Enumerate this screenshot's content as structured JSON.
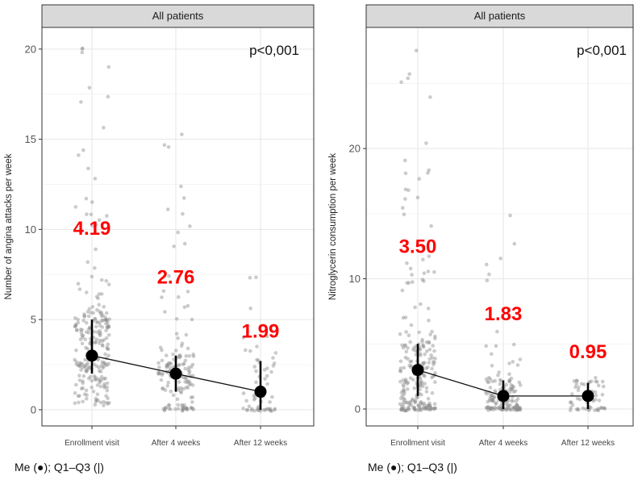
{
  "chart_data": [
    {
      "type": "scatter",
      "panel_title": "All patients",
      "ylabel": "Number of angina attacks per week",
      "categories": [
        "Enrollment visit",
        "After 4 weeks",
        "After 12 weeks"
      ],
      "yticks": [
        0,
        5,
        10,
        15,
        20
      ],
      "ylim": [
        -0.9,
        21.2
      ],
      "p_value": "p<0,001",
      "median": [
        3.0,
        2.0,
        1.0
      ],
      "q1": [
        2.0,
        1.0,
        0.0
      ],
      "q3": [
        5.0,
        3.0,
        2.7
      ],
      "mean_labels": [
        "4.19",
        "2.76",
        "1.99"
      ],
      "mean_label_y": [
        9.7,
        7.0,
        4.0
      ],
      "jitter_points": {
        "counts": [
          240,
          150,
          60
        ],
        "max": [
          20.0,
          15.2,
          7.3
        ],
        "spread": [
          2.6,
          1.9,
          1.4
        ]
      },
      "caption": "Me (●); Q1–Q3 (|)"
    },
    {
      "type": "scatter",
      "panel_title": "All patients",
      "ylabel": "Nitroglycerin consumption per week",
      "categories": [
        "Enrollment visit",
        "After 4 weeks",
        "After 12 weeks"
      ],
      "yticks": [
        0,
        10,
        20
      ],
      "ylim": [
        -1.3,
        29.3
      ],
      "p_value": "p<0,001",
      "median": [
        3.0,
        1.0,
        1.0
      ],
      "q1": [
        1.0,
        0.0,
        0.0
      ],
      "q3": [
        5.0,
        2.2,
        2.0
      ],
      "mean_labels": [
        "3.50",
        "1.83",
        "0.95"
      ],
      "mean_label_y": [
        12.0,
        6.8,
        3.9
      ],
      "jitter_points": {
        "counts": [
          240,
          150,
          60
        ],
        "max": [
          27.5,
          14.8,
          2.3
        ],
        "spread": [
          3.2,
          1.8,
          0.9
        ]
      },
      "caption": "Me (●); Q1–Q3 (|)"
    }
  ]
}
